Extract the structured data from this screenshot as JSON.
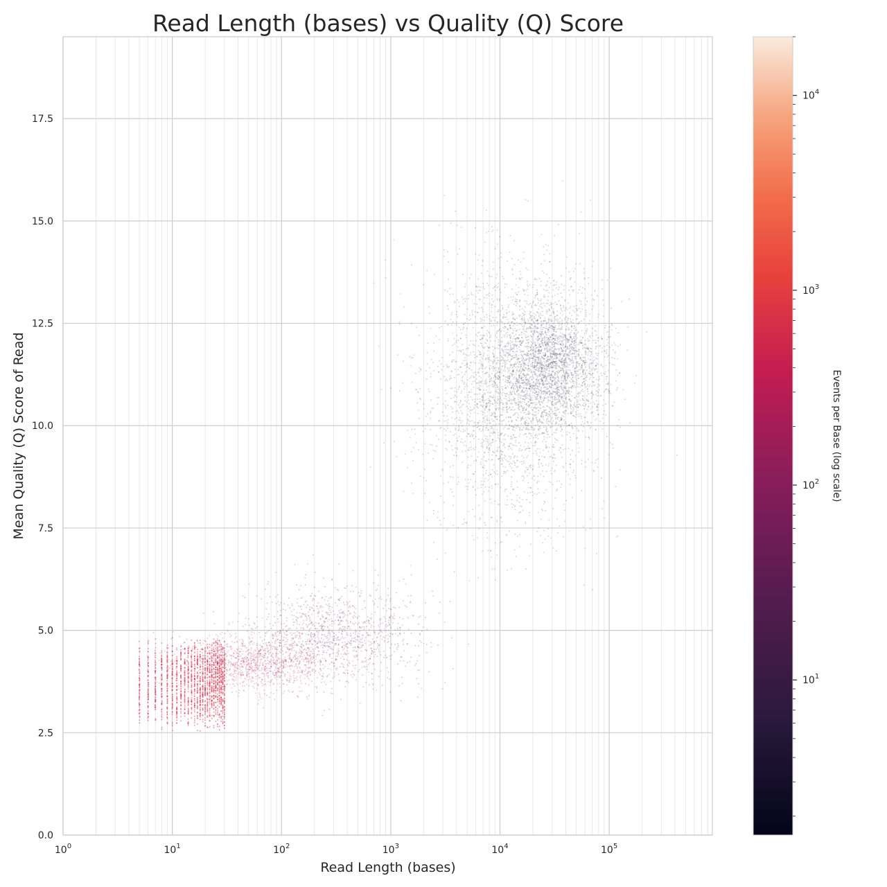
{
  "chart_data": {
    "type": "scatter",
    "title": "Read Length (bases) vs Quality (Q) Score",
    "xlabel": "Read Length (bases)",
    "ylabel": "Mean Quality (Q) Score of Read",
    "xscale": "log",
    "xlim": [
      1,
      880000
    ],
    "ylim": [
      0,
      19.5
    ],
    "xticks": [
      {
        "base": "10",
        "exp": "0",
        "value": 1
      },
      {
        "base": "10",
        "exp": "1",
        "value": 10
      },
      {
        "base": "10",
        "exp": "2",
        "value": 100
      },
      {
        "base": "10",
        "exp": "3",
        "value": 1000
      },
      {
        "base": "10",
        "exp": "4",
        "value": 10000
      },
      {
        "base": "10",
        "exp": "5",
        "value": 100000
      }
    ],
    "yticks": [
      "0.0",
      "2.5",
      "5.0",
      "7.5",
      "10.0",
      "12.5",
      "15.0",
      "17.5"
    ],
    "grid": true,
    "colorbar": {
      "label": "Events per Base (log scale)",
      "scale": "log",
      "range": [
        1.6,
        20000
      ],
      "colormap": "rocket",
      "ticks": [
        {
          "base": "10",
          "exp": "1",
          "value": 10
        },
        {
          "base": "10",
          "exp": "2",
          "value": 100
        },
        {
          "base": "10",
          "exp": "3",
          "value": 1000
        },
        {
          "base": "10",
          "exp": "4",
          "value": 10000
        }
      ]
    },
    "clusters": [
      {
        "kind": "short_reads_discrete",
        "x_range": [
          5,
          30
        ],
        "y_center": 3.7,
        "y_spread": 1.2,
        "events_per_base": 600
      },
      {
        "kind": "short_reads",
        "x_center": 60,
        "x_log_sd": 0.35,
        "y_center": 4.2,
        "y_sd": 0.35,
        "events_per_base": 250
      },
      {
        "kind": "medium_reads",
        "x_center": 300,
        "x_log_sd": 0.4,
        "y_center": 4.9,
        "y_sd": 0.6,
        "events_per_base": 60
      },
      {
        "kind": "long_reads",
        "x_center": 12000,
        "x_log_sd": 0.4,
        "y_center": 10.8,
        "y_sd": 1.6,
        "events_per_base": 3
      },
      {
        "kind": "long_reads_dense",
        "x_center": 28000,
        "x_log_sd": 0.25,
        "y_center": 11.5,
        "y_sd": 0.8,
        "events_per_base": 2
      }
    ]
  }
}
